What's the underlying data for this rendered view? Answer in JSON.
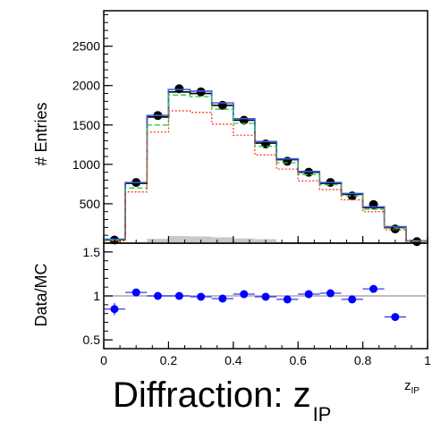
{
  "caption": {
    "main": "Diffraction: z",
    "sub": "IP"
  },
  "chart_data": {
    "type": "histogram",
    "title": "",
    "xlabel": "z",
    "xlabel_sub": "IP",
    "x_ticks": [
      "0",
      "0.2",
      "0.4",
      "0.6",
      "0.8",
      "1"
    ],
    "xlim": [
      0,
      1
    ],
    "bin_width": 0.0667,
    "bin_centers": [
      0.033,
      0.1,
      0.167,
      0.233,
      0.3,
      0.367,
      0.433,
      0.5,
      0.567,
      0.633,
      0.7,
      0.767,
      0.833,
      0.9,
      0.967
    ],
    "top_panel": {
      "ylabel": "# Entries",
      "ylim": [
        0,
        2950
      ],
      "y_ticks": [
        500,
        1000,
        1500,
        2000,
        2500
      ],
      "y_tick_labels": [
        "500",
        "1000",
        "1500",
        "2000",
        "2500"
      ],
      "series": [
        {
          "name": "",
          "kind": "points",
          "color": "#000000",
          "values": [
            40,
            770,
            1620,
            1960,
            1920,
            1750,
            1560,
            1260,
            1040,
            900,
            770,
            600,
            490,
            180,
            20
          ]
        },
        {
          "name": "",
          "kind": "step",
          "color": "#000000",
          "values": [
            45,
            760,
            1600,
            1920,
            1900,
            1750,
            1560,
            1270,
            1060,
            900,
            760,
            620,
            450,
            200,
            30
          ]
        },
        {
          "name": "",
          "kind": "step",
          "color": "#3b5bdb",
          "values": [
            50,
            770,
            1620,
            1950,
            1930,
            1780,
            1580,
            1290,
            1070,
            910,
            770,
            630,
            460,
            210,
            30
          ]
        },
        {
          "name": "",
          "kind": "step-dashed",
          "color": "#2ecc40",
          "values": [
            40,
            700,
            1500,
            1880,
            1860,
            1700,
            1520,
            1230,
            1020,
            870,
            740,
            600,
            430,
            190,
            25
          ]
        },
        {
          "name": "",
          "kind": "step-dotted",
          "color": "#ff3b30",
          "values": [
            30,
            650,
            1410,
            1680,
            1660,
            1510,
            1370,
            1120,
            940,
            790,
            680,
            550,
            400,
            170,
            20
          ]
        },
        {
          "name": "",
          "kind": "filled",
          "color": "#c8c8c8",
          "values": [
            0,
            15,
            55,
            90,
            85,
            75,
            60,
            50,
            0,
            0,
            0,
            0,
            0,
            0,
            0
          ]
        }
      ]
    },
    "bottom_panel": {
      "ylabel": "Data/MC",
      "ylim": [
        0.4,
        1.6
      ],
      "y_ticks": [
        0.5,
        1,
        1.5
      ],
      "y_tick_labels": [
        "0.5",
        "1",
        "1.5"
      ],
      "reference_line": 1,
      "series": [
        {
          "name": "",
          "kind": "points",
          "color": "#0000ff",
          "values": [
            0.85,
            1.04,
            1.0,
            1.0,
            0.99,
            0.97,
            1.02,
            0.99,
            0.96,
            1.02,
            1.03,
            0.96,
            1.08,
            0.76
          ],
          "errors": [
            0.07,
            0.03,
            0.02,
            0.02,
            0.02,
            0.02,
            0.02,
            0.02,
            0.02,
            0.02,
            0.02,
            0.02,
            0.03,
            0.04
          ]
        }
      ]
    }
  }
}
